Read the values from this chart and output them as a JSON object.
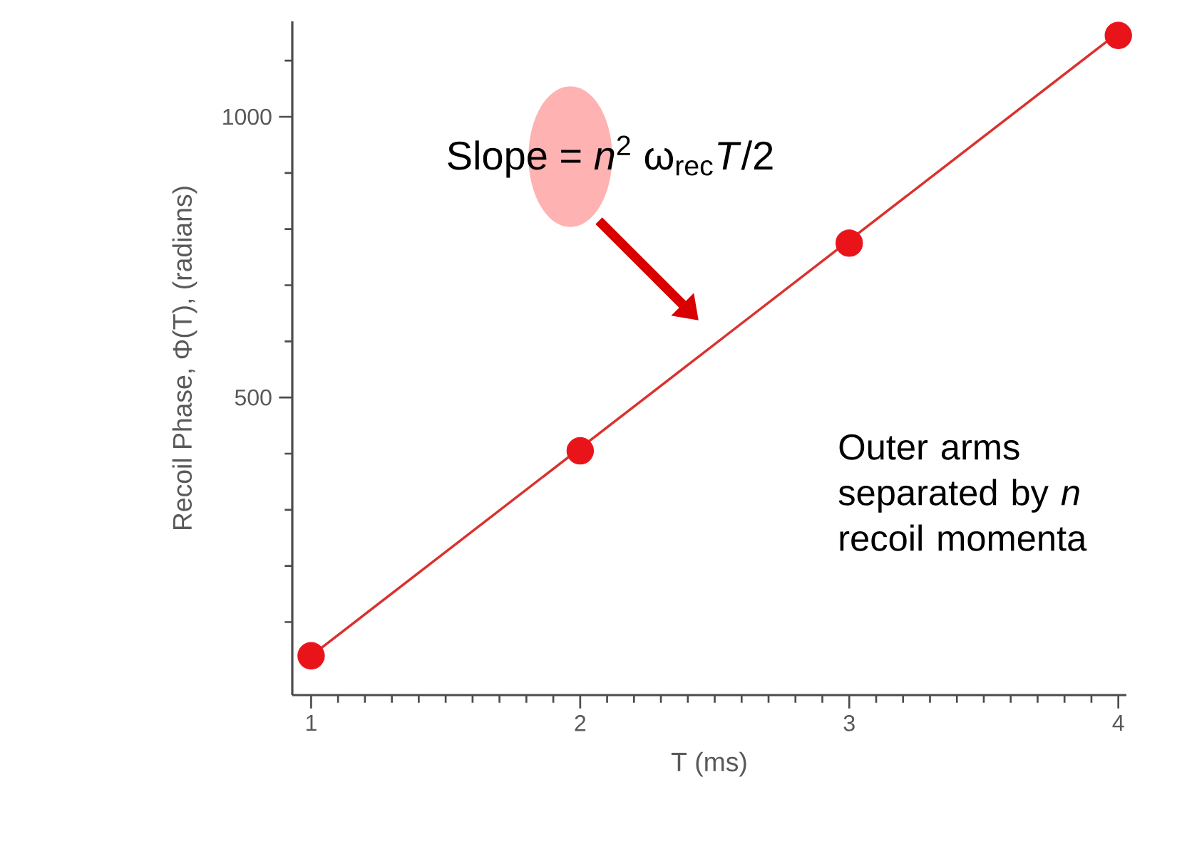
{
  "chart_data": {
    "type": "scatter",
    "xlabel": "T (ms)",
    "ylabel": "Recoil Phase, Φ(T), (radians)",
    "series": [
      {
        "color": "#e8141a",
        "x": [
          1,
          2,
          3,
          4
        ],
        "values": [
          40,
          405,
          775,
          1145
        ],
        "marker": "circle"
      },
      {
        "type": "line",
        "color": "#d9322e",
        "x": [
          1,
          4
        ],
        "values": [
          40,
          1150
        ],
        "marker": "none",
        "line_style": "solid"
      }
    ],
    "xlim": [
      0.93,
      4.03
    ],
    "ylim": [
      -30,
      1170
    ],
    "xticks": [
      1,
      2,
      3,
      4,
      {
        "value": 1.1,
        "label": null
      },
      {
        "value": 1.2,
        "label": null
      },
      {
        "value": 1.3,
        "label": null
      },
      {
        "value": 1.4,
        "label": null
      },
      {
        "value": 1.5,
        "label": null
      },
      {
        "value": 1.6,
        "label": null
      },
      {
        "value": 1.7,
        "label": null
      },
      {
        "value": 1.8,
        "label": null
      },
      {
        "value": 1.9,
        "label": null
      },
      {
        "value": 2.1,
        "label": null
      },
      {
        "value": 2.2,
        "label": null
      },
      {
        "value": 2.3,
        "label": null
      },
      {
        "value": 2.4,
        "label": null
      },
      {
        "value": 2.5,
        "label": null
      },
      {
        "value": 2.6,
        "label": null
      },
      {
        "value": 2.7,
        "label": null
      },
      {
        "value": 2.8,
        "label": null
      },
      {
        "value": 2.9,
        "label": null
      },
      {
        "value": 3.1,
        "label": null
      },
      {
        "value": 3.2,
        "label": null
      },
      {
        "value": 3.3,
        "label": null
      },
      {
        "value": 3.4,
        "label": null
      },
      {
        "value": 3.5,
        "label": null
      },
      {
        "value": 3.6,
        "label": null
      },
      {
        "value": 3.7,
        "label": null
      },
      {
        "value": 3.8,
        "label": null
      },
      {
        "value": 3.9,
        "label": null
      }
    ],
    "yticks": [
      500,
      1000,
      {
        "value": 100,
        "label": null
      },
      {
        "value": 200,
        "label": null
      },
      {
        "value": 300,
        "label": null
      },
      {
        "value": 400,
        "label": null
      },
      {
        "value": 600,
        "label": null
      },
      {
        "value": 700,
        "label": null
      },
      {
        "value": 800,
        "label": null
      },
      {
        "value": 900,
        "label": null
      },
      {
        "value": 1100,
        "label": null
      }
    ],
    "grid": false,
    "annotations": [
      "Slope = *n*$^{2}$ ω$_{rec}$*T*/2",
      "Outer arms separated by *n* recoil momenta"
    ]
  }
}
